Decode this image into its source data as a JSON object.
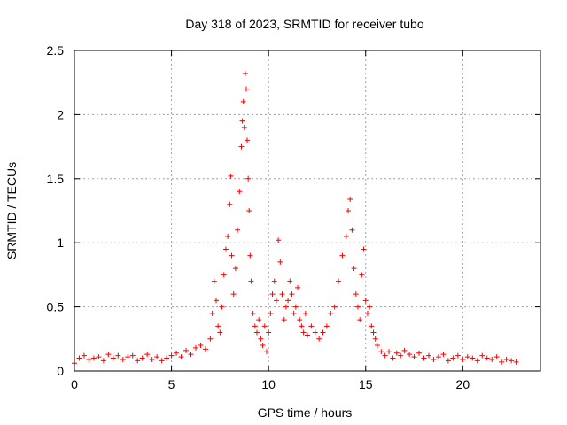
{
  "chart_data": {
    "type": "scatter",
    "title": "Day 318 of 2023, SRMTID for receiver tubo",
    "xlabel": "GPS time / hours",
    "ylabel": "SRMTID / TECUs",
    "xlim": [
      0,
      24
    ],
    "ylim": [
      0,
      2.5
    ],
    "xticks": [
      0,
      5,
      10,
      15,
      20
    ],
    "xtick_labels": [
      "0",
      "5",
      "10",
      "15",
      "20"
    ],
    "yticks": [
      0,
      0.5,
      1,
      1.5,
      2,
      2.5
    ],
    "ytick_labels": [
      "0",
      "0.5",
      "1",
      "1.5",
      "2",
      "2.5"
    ],
    "grid": true,
    "marker": "+",
    "series": [
      {
        "name": "SRMTID",
        "color": "#ff0000",
        "x": [
          0.0,
          0.25,
          0.5,
          0.75,
          1.0,
          1.25,
          1.5,
          1.75,
          2.0,
          2.25,
          2.5,
          2.75,
          3.0,
          3.25,
          3.5,
          3.75,
          4.0,
          4.25,
          4.5,
          4.75,
          5.0,
          5.25,
          5.5,
          5.75,
          6.0,
          6.25,
          6.5,
          6.75,
          7.0,
          7.1,
          7.2,
          7.3,
          7.4,
          7.5,
          7.6,
          7.7,
          7.8,
          7.9,
          8.0,
          8.05,
          8.1,
          8.2,
          8.3,
          8.4,
          8.5,
          8.6,
          8.65,
          8.7,
          8.75,
          8.8,
          8.85,
          8.9,
          8.95,
          9.0,
          9.05,
          9.1,
          9.2,
          9.3,
          9.4,
          9.5,
          9.6,
          9.7,
          9.8,
          9.9,
          10.0,
          10.1,
          10.2,
          10.3,
          10.4,
          10.5,
          10.6,
          10.7,
          10.8,
          10.9,
          11.0,
          11.1,
          11.2,
          11.3,
          11.4,
          11.5,
          11.6,
          11.7,
          11.8,
          11.9,
          12.0,
          12.2,
          12.4,
          12.6,
          12.8,
          13.0,
          13.2,
          13.4,
          13.6,
          13.8,
          14.0,
          14.1,
          14.2,
          14.3,
          14.4,
          14.5,
          14.6,
          14.7,
          14.8,
          14.9,
          15.0,
          15.1,
          15.2,
          15.3,
          15.4,
          15.5,
          15.6,
          15.8,
          16.0,
          16.2,
          16.4,
          16.6,
          16.8,
          17.0,
          17.25,
          17.5,
          17.75,
          18.0,
          18.25,
          18.5,
          18.75,
          19.0,
          19.25,
          19.5,
          19.75,
          20.0,
          20.25,
          20.5,
          20.75,
          21.0,
          21.25,
          21.5,
          21.75,
          22.0,
          22.25,
          22.5,
          22.75
        ],
        "y": [
          0.06,
          0.1,
          0.12,
          0.09,
          0.1,
          0.11,
          0.08,
          0.13,
          0.1,
          0.12,
          0.09,
          0.11,
          0.12,
          0.08,
          0.1,
          0.13,
          0.09,
          0.11,
          0.08,
          0.1,
          0.12,
          0.14,
          0.11,
          0.16,
          0.13,
          0.18,
          0.2,
          0.17,
          0.25,
          0.45,
          0.7,
          0.55,
          0.35,
          0.3,
          0.5,
          0.75,
          0.95,
          1.05,
          1.3,
          1.52,
          0.9,
          0.6,
          0.8,
          1.1,
          1.4,
          1.75,
          1.95,
          2.1,
          1.9,
          2.32,
          2.2,
          1.8,
          1.5,
          1.25,
          0.9,
          0.7,
          0.45,
          0.35,
          0.3,
          0.4,
          0.25,
          0.2,
          0.35,
          0.15,
          0.3,
          0.45,
          0.6,
          0.7,
          0.55,
          1.02,
          0.85,
          0.6,
          0.4,
          0.5,
          0.55,
          0.7,
          0.6,
          0.45,
          0.5,
          0.65,
          0.4,
          0.35,
          0.3,
          0.45,
          0.28,
          0.35,
          0.3,
          0.25,
          0.3,
          0.35,
          0.45,
          0.5,
          0.7,
          0.9,
          1.05,
          1.25,
          1.34,
          1.1,
          0.8,
          0.6,
          0.5,
          0.4,
          0.75,
          0.95,
          0.55,
          0.45,
          0.5,
          0.35,
          0.3,
          0.25,
          0.2,
          0.15,
          0.12,
          0.15,
          0.1,
          0.14,
          0.12,
          0.16,
          0.13,
          0.11,
          0.14,
          0.1,
          0.12,
          0.09,
          0.11,
          0.13,
          0.08,
          0.1,
          0.12,
          0.09,
          0.11,
          0.1,
          0.08,
          0.12,
          0.1,
          0.09,
          0.11,
          0.07,
          0.09,
          0.08,
          0.07
        ]
      }
    ]
  }
}
